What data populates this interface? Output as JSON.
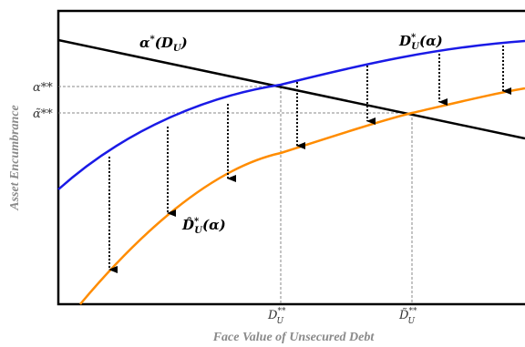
{
  "axes": {
    "x_title": "Face Value of Unsecured Debt",
    "y_title": "Asset Encumbrance",
    "y_ticks": {
      "alpha_ss": "α**",
      "alpha_tilde_ss": "α̃**"
    },
    "x_ticks": {
      "D_ss": {
        "base": "D",
        "sup": "**",
        "sub": "U"
      },
      "D_tilde_ss": {
        "base": "D̃",
        "sup": "**",
        "sub": "U"
      }
    }
  },
  "curves": {
    "alpha_star": {
      "base": "α",
      "sup": "*",
      "arg": "(D",
      "argsub": "U",
      "close": ")",
      "color": "#000000"
    },
    "D_star": {
      "base": "D",
      "sup": "*",
      "sub": "U",
      "arg": "(α)",
      "color": "#1a1ae6"
    },
    "D_hat_star": {
      "base": "D̂",
      "sup": "*",
      "sub": "U",
      "arg": "(α)",
      "color": "#ff8c00"
    }
  }
}
